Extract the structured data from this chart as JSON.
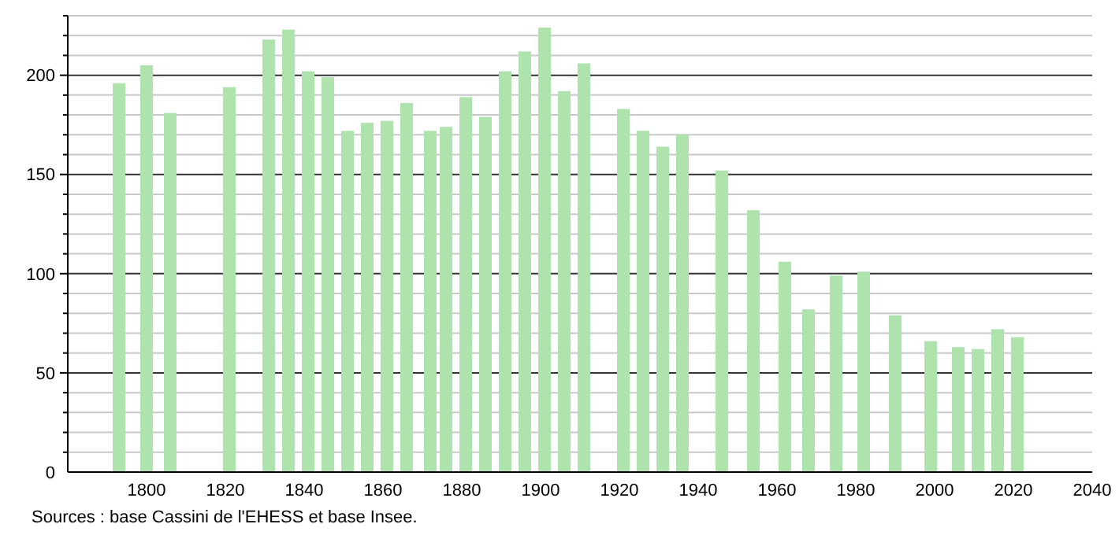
{
  "chart_data": {
    "type": "bar",
    "x": [
      1793,
      1800,
      1806,
      1821,
      1831,
      1836,
      1841,
      1846,
      1851,
      1856,
      1861,
      1866,
      1872,
      1876,
      1881,
      1886,
      1891,
      1896,
      1901,
      1906,
      1911,
      1921,
      1926,
      1931,
      1936,
      1946,
      1954,
      1962,
      1968,
      1975,
      1982,
      1990,
      1999,
      2006,
      2011,
      2016,
      2021
    ],
    "values": [
      196,
      205,
      181,
      194,
      218,
      223,
      202,
      199,
      172,
      176,
      177,
      186,
      172,
      174,
      189,
      179,
      202,
      212,
      224,
      192,
      206,
      183,
      172,
      164,
      170,
      152,
      132,
      106,
      82,
      99,
      101,
      79,
      66,
      63,
      62,
      72,
      68
    ],
    "color": "#aee3ae",
    "xlim": [
      1780,
      2040
    ],
    "xticks": [
      1800,
      1820,
      1840,
      1860,
      1880,
      1900,
      1920,
      1940,
      1960,
      1980,
      2000,
      2020,
      2040
    ],
    "ylim": [
      0,
      230
    ],
    "yticks": [
      0,
      {
        "value": 10,
        "label": null
      },
      {
        "value": 20,
        "label": null
      },
      {
        "value": 30,
        "label": null
      },
      {
        "value": 40,
        "label": null
      },
      50,
      {
        "value": 60,
        "label": null
      },
      {
        "value": 70,
        "label": null
      },
      {
        "value": 80,
        "label": null
      },
      {
        "value": 90,
        "label": null
      },
      100,
      {
        "value": 110,
        "label": null
      },
      {
        "value": 120,
        "label": null
      },
      {
        "value": 130,
        "label": null
      },
      {
        "value": 140,
        "label": null
      },
      150,
      {
        "value": 160,
        "label": null
      },
      {
        "value": 170,
        "label": null
      },
      {
        "value": 180,
        "label": null
      },
      {
        "value": 190,
        "label": null
      },
      200,
      {
        "value": 210,
        "label": null
      },
      {
        "value": 220,
        "label": null
      },
      {
        "value": 230,
        "label": null
      }
    ],
    "grid": "y",
    "annotations": [
      "Sources : base Cassini de l'EHESS et base Insee."
    ]
  }
}
